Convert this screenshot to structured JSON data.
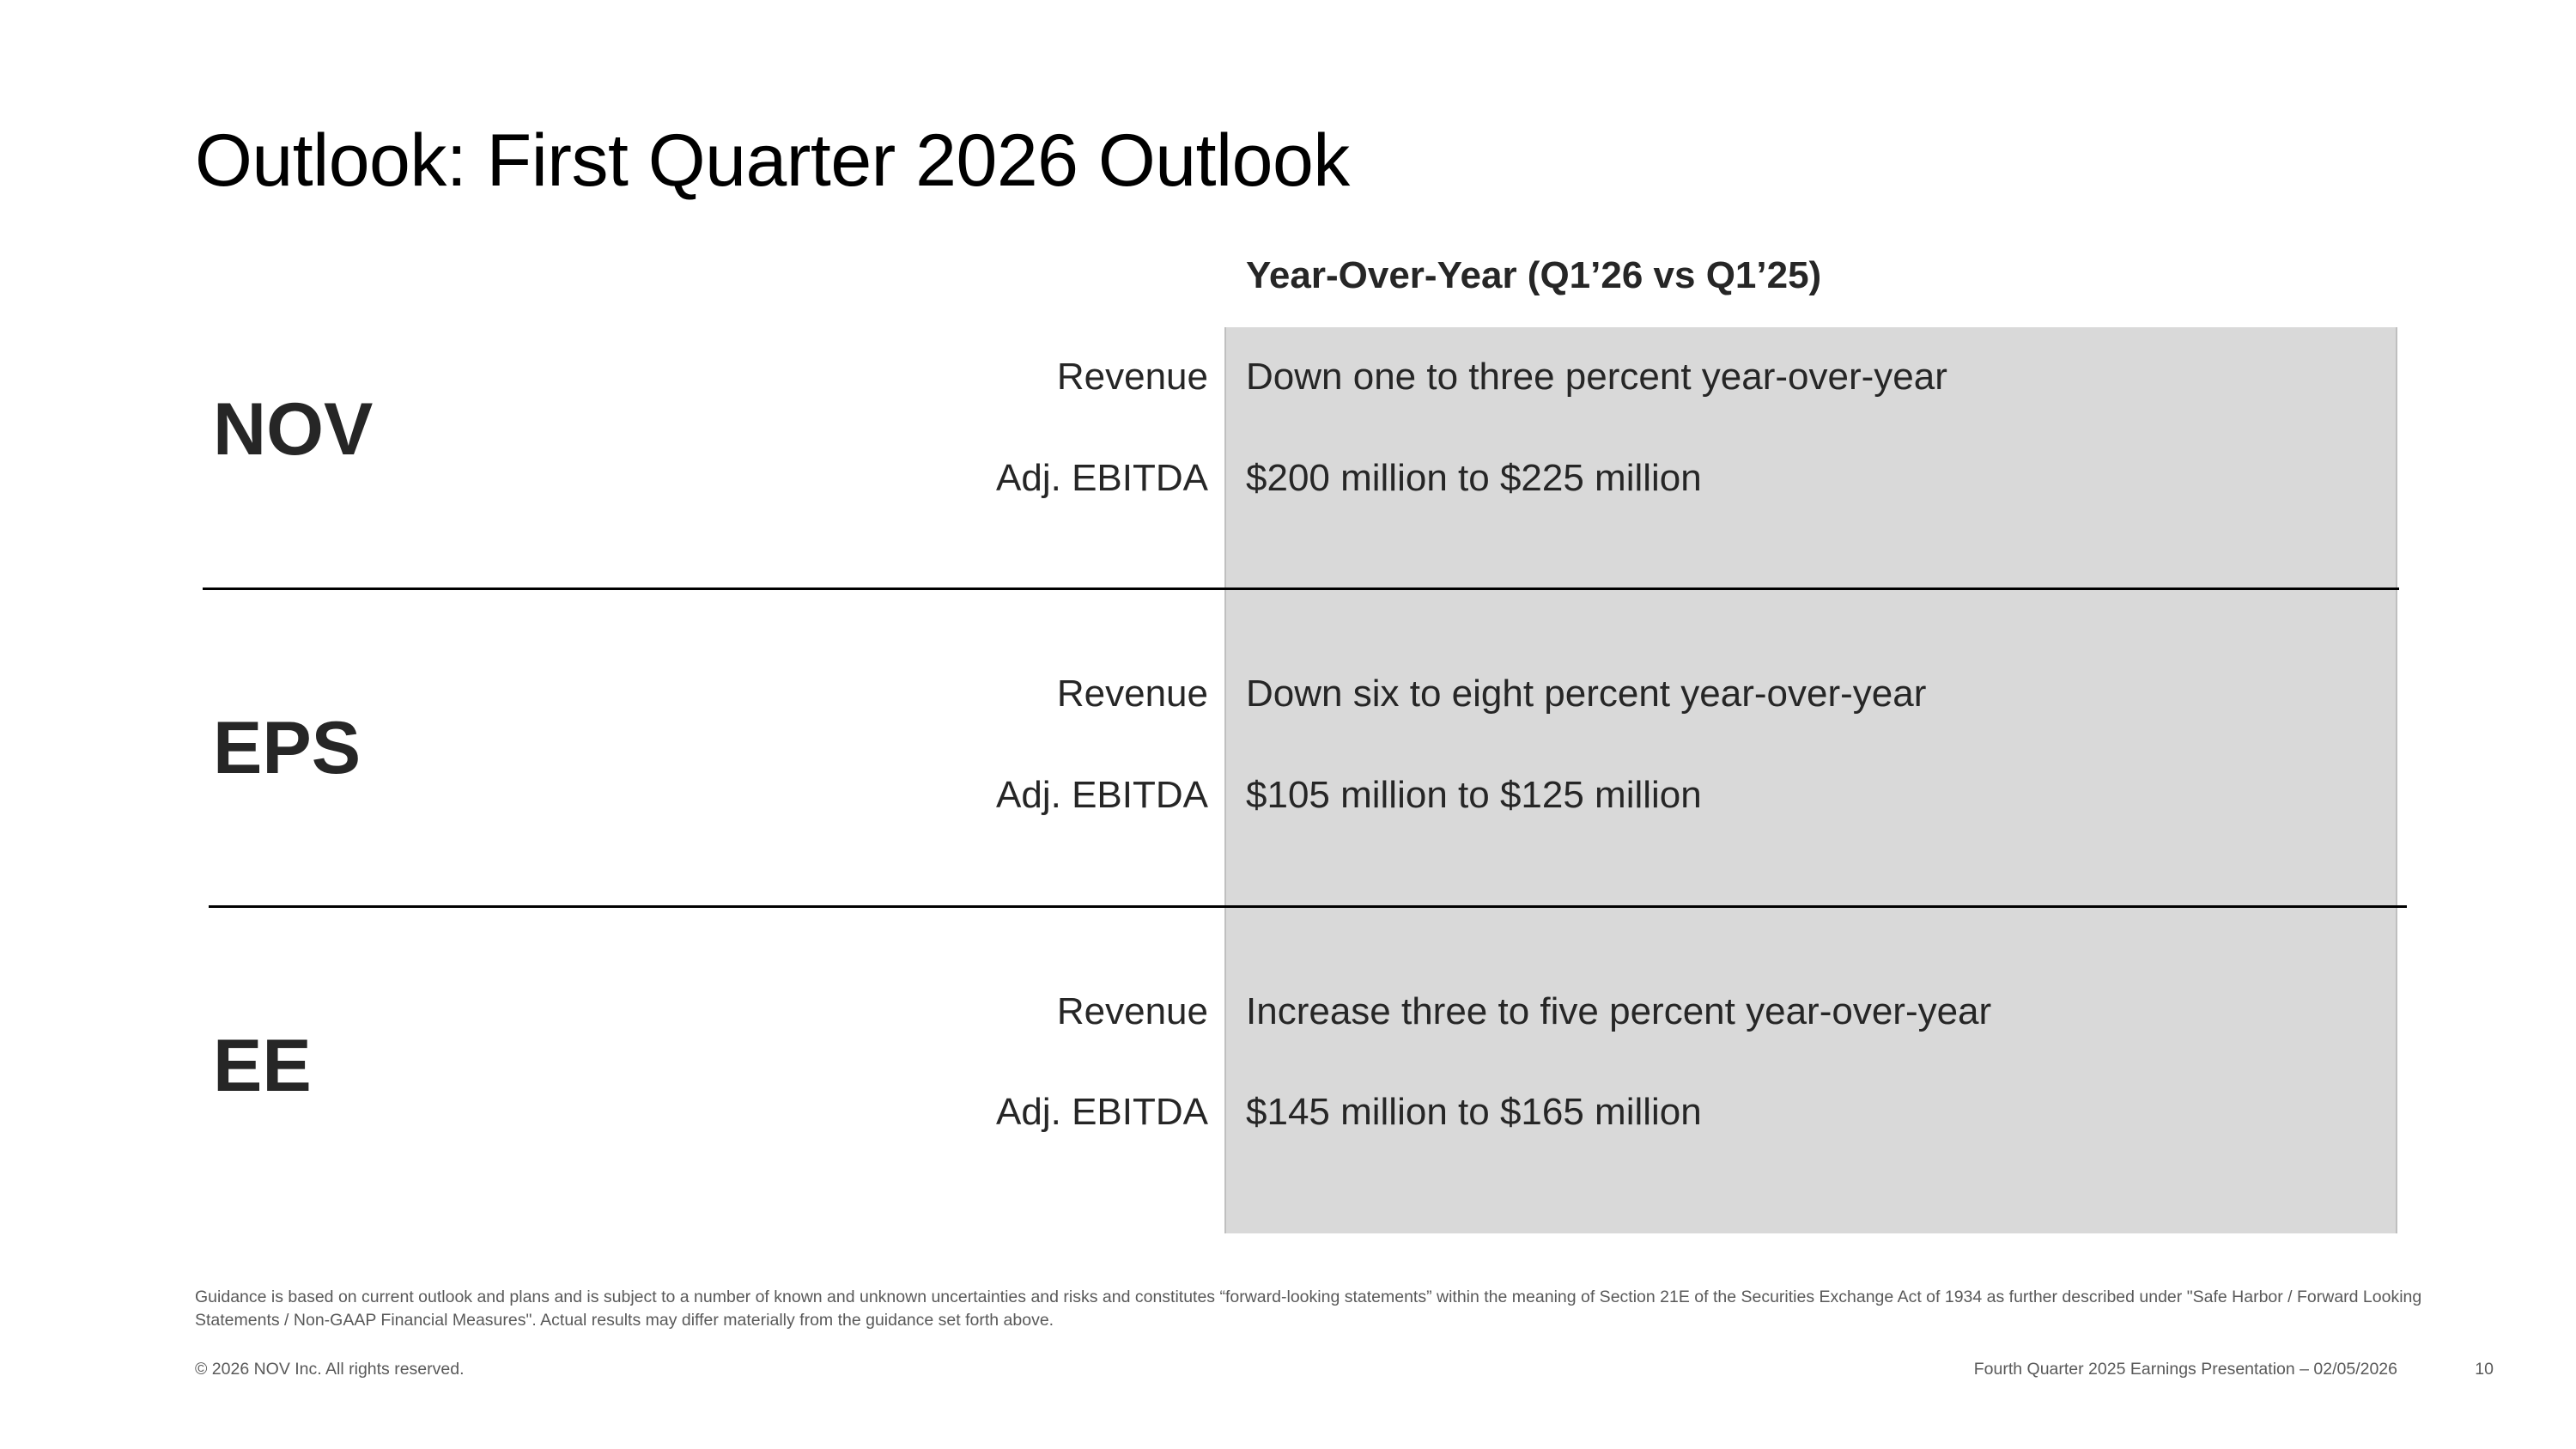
{
  "title": "Outlook: First Quarter 2026 Outlook",
  "column_header": "Year-Over-Year (Q1’26 vs Q1’25)",
  "segments": [
    {
      "name": "NOV",
      "revenue_label": "Revenue",
      "revenue_value": "Down one to three percent year-over-year",
      "ebitda_label": "Adj. EBITDA",
      "ebitda_value": "$200 million to $225 million"
    },
    {
      "name": "EPS",
      "revenue_label": "Revenue",
      "revenue_value": "Down six to eight percent year-over-year",
      "ebitda_label": "Adj. EBITDA",
      "ebitda_value": "$105 million to $125 million"
    },
    {
      "name": "EE",
      "revenue_label": "Revenue",
      "revenue_value": "Increase three to five percent year-over-year",
      "ebitda_label": "Adj. EBITDA",
      "ebitda_value": "$145 million to $165 million"
    }
  ],
  "disclaimer": "Guidance is based on current outlook and plans and is subject to a number of known and unknown uncertainties and risks and constitutes “forward-looking statements” within the meaning of Section 21E of the Securities Exchange Act of 1934 as further described under \"Safe Harbor / Forward Looking Statements / Non-GAAP Financial Measures\". Actual results may differ materially from the guidance set forth above.",
  "footer": {
    "copyright": "© 2026 NOV Inc. All rights reserved.",
    "presentation": "Fourth Quarter 2025 Earnings Presentation – 02/05/2026",
    "page_number": "10"
  },
  "colors": {
    "panel": "#d9d9d9",
    "text": "#262626",
    "divider": "#000000"
  }
}
